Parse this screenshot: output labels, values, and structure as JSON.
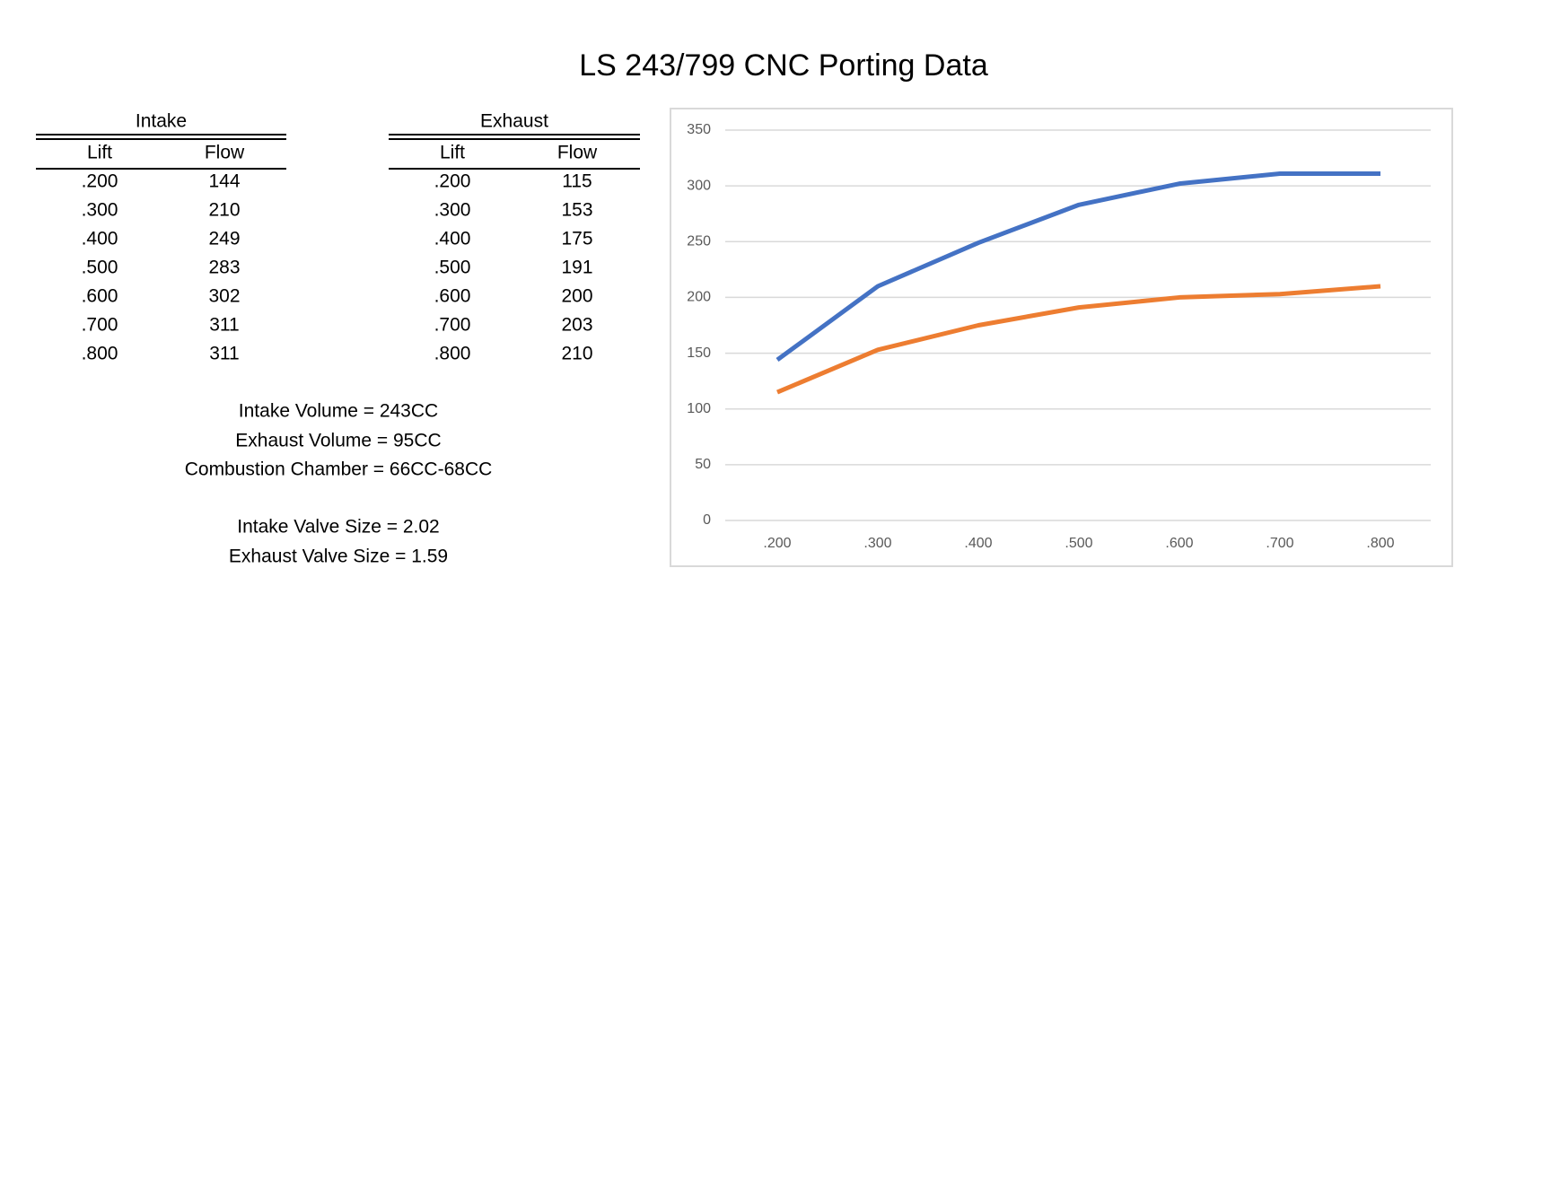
{
  "title": "LS 243/799 CNC Porting Data",
  "tables": [
    {
      "title": "Intake",
      "columns": [
        "Lift",
        "Flow"
      ],
      "rows": [
        [
          ".200",
          144
        ],
        [
          ".300",
          210
        ],
        [
          ".400",
          249
        ],
        [
          ".500",
          283
        ],
        [
          ".600",
          302
        ],
        [
          ".700",
          311
        ],
        [
          ".800",
          311
        ]
      ]
    },
    {
      "title": "Exhaust",
      "columns": [
        "Lift",
        "Flow"
      ],
      "rows": [
        [
          ".200",
          115
        ],
        [
          ".300",
          153
        ],
        [
          ".400",
          175
        ],
        [
          ".500",
          191
        ],
        [
          ".600",
          200
        ],
        [
          ".700",
          203
        ],
        [
          ".800",
          210
        ]
      ]
    }
  ],
  "notes": [
    "Intake Volume = 243CC",
    "Exhaust Volume = 95CC",
    "Combustion Chamber = 66CC-68CC",
    "Intake Valve Size = 2.02",
    "Exhaust Valve Size = 1.59"
  ],
  "chart_data": {
    "type": "line",
    "categories": [
      ".200",
      ".300",
      ".400",
      ".500",
      ".600",
      ".700",
      ".800"
    ],
    "series": [
      {
        "color": "#4472c4",
        "values": [
          144,
          210,
          249,
          283,
          302,
          311,
          311
        ]
      },
      {
        "color": "#ed7d31",
        "values": [
          115,
          153,
          175,
          191,
          200,
          203,
          210
        ]
      }
    ],
    "ylim": [
      0,
      350
    ],
    "yticks": [
      0,
      50,
      100,
      150,
      200,
      250,
      300,
      350
    ],
    "grid": true
  }
}
